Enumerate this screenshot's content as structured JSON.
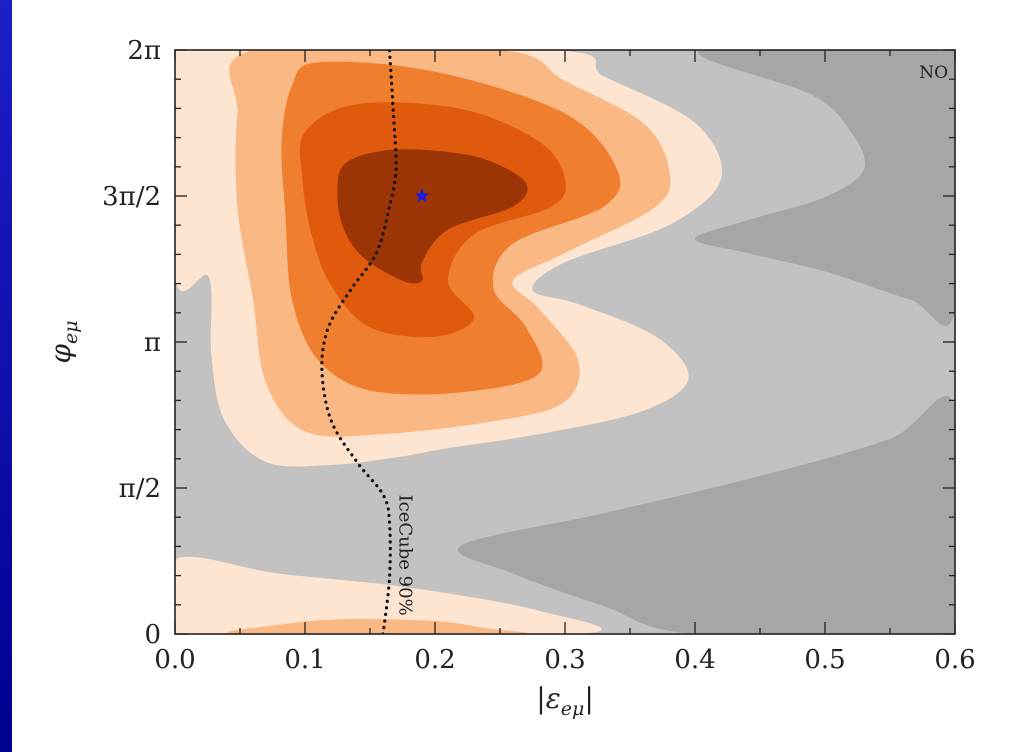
{
  "chart_data": {
    "type": "contour",
    "title": "",
    "xlabel": "|ε_eμ|",
    "ylabel": "φ_eμ",
    "xlim": [
      0.0,
      0.6
    ],
    "ylim": [
      0,
      6.2832
    ],
    "x_ticks": [
      {
        "value": 0.0,
        "label": "0.0"
      },
      {
        "value": 0.1,
        "label": "0.1"
      },
      {
        "value": 0.2,
        "label": "0.2"
      },
      {
        "value": 0.3,
        "label": "0.3"
      },
      {
        "value": 0.4,
        "label": "0.4"
      },
      {
        "value": 0.5,
        "label": "0.5"
      },
      {
        "value": 0.6,
        "label": "0.6"
      }
    ],
    "y_ticks": [
      {
        "value": 0,
        "label": "0"
      },
      {
        "value": 1.5708,
        "label": "π/2"
      },
      {
        "value": 3.1416,
        "label": "π"
      },
      {
        "value": 4.7124,
        "label": "3π/2"
      },
      {
        "value": 6.2832,
        "label": "2π"
      }
    ],
    "colors": {
      "background": "#ffffff",
      "gray_light": "#c2c2c2",
      "gray_dark": "#a6a6a6",
      "orange_1": "#fde5d2",
      "orange_2": "#f9b884",
      "orange_3": "#ef7e2e",
      "orange_4": "#e05a0e",
      "orange_5": "#9b3505",
      "best_fit_marker": "#1a1ae6",
      "slide_background": "#000080"
    },
    "regions": [
      {
        "fill": "gray_light",
        "points": [
          [
            0.0,
            0
          ],
          [
            0.6,
            0
          ],
          [
            0.6,
            6.2832
          ],
          [
            0.0,
            6.2832
          ]
        ]
      },
      {
        "fill": "gray_dark",
        "points": [
          [
            0.405,
            6.2832
          ],
          [
            0.6,
            6.2832
          ],
          [
            0.6,
            3.5
          ],
          [
            0.565,
            3.6
          ],
          [
            0.5,
            3.9
          ],
          [
            0.44,
            4.1
          ],
          [
            0.4,
            4.25
          ],
          [
            0.44,
            4.45
          ],
          [
            0.5,
            4.7
          ],
          [
            0.53,
            5.0
          ],
          [
            0.52,
            5.4
          ],
          [
            0.49,
            5.8
          ]
        ]
      },
      {
        "fill": "gray_dark",
        "points": [
          [
            0.6,
            2.45
          ],
          [
            0.6,
            0
          ],
          [
            0.4,
            0
          ],
          [
            0.33,
            0.3
          ],
          [
            0.26,
            0.65
          ],
          [
            0.22,
            0.95
          ],
          [
            0.33,
            1.3
          ],
          [
            0.45,
            1.7
          ],
          [
            0.55,
            2.1
          ]
        ]
      },
      {
        "fill": "orange_1",
        "points": [
          [
            0.0,
            6.2832
          ],
          [
            0.0,
            3.84
          ],
          [
            0.026,
            3.84
          ],
          [
            0.028,
            3.0
          ],
          [
            0.038,
            2.3
          ],
          [
            0.07,
            1.85
          ],
          [
            0.12,
            1.82
          ],
          [
            0.17,
            1.9
          ],
          [
            0.21,
            2.0
          ],
          [
            0.28,
            2.15
          ],
          [
            0.36,
            2.4
          ],
          [
            0.395,
            2.75
          ],
          [
            0.37,
            3.2
          ],
          [
            0.31,
            3.55
          ],
          [
            0.275,
            3.7
          ],
          [
            0.3,
            4.0
          ],
          [
            0.38,
            4.4
          ],
          [
            0.42,
            4.9
          ],
          [
            0.4,
            5.5
          ],
          [
            0.33,
            6.0
          ],
          [
            0.29,
            6.2832
          ]
        ]
      },
      {
        "fill": "orange_1",
        "points": [
          [
            0.0,
            0.8
          ],
          [
            0.08,
            0.65
          ],
          [
            0.18,
            0.5
          ],
          [
            0.28,
            0.25
          ],
          [
            0.31,
            0
          ],
          [
            0.0,
            0
          ]
        ]
      },
      {
        "fill": "orange_2",
        "points": [
          [
            0.06,
            6.2832
          ],
          [
            0.048,
            5.6
          ],
          [
            0.048,
            4.6
          ],
          [
            0.06,
            3.6
          ],
          [
            0.07,
            2.7
          ],
          [
            0.1,
            2.18
          ],
          [
            0.16,
            2.15
          ],
          [
            0.25,
            2.3
          ],
          [
            0.3,
            2.5
          ],
          [
            0.31,
            2.95
          ],
          [
            0.28,
            3.5
          ],
          [
            0.26,
            3.8
          ],
          [
            0.3,
            4.1
          ],
          [
            0.37,
            4.6
          ],
          [
            0.38,
            5.0
          ],
          [
            0.36,
            5.5
          ],
          [
            0.3,
            5.95
          ],
          [
            0.25,
            6.2832
          ]
        ]
      },
      {
        "fill": "orange_2",
        "points": [
          [
            0.05,
            0
          ],
          [
            0.08,
            0.1
          ],
          [
            0.13,
            0.16
          ],
          [
            0.2,
            0.14
          ],
          [
            0.24,
            0.06
          ],
          [
            0.26,
            0
          ]
        ]
      },
      {
        "fill": "orange_3",
        "points": [
          [
            0.11,
            6.15
          ],
          [
            0.09,
            5.9
          ],
          [
            0.082,
            5.3
          ],
          [
            0.085,
            4.5
          ],
          [
            0.09,
            3.6
          ],
          [
            0.11,
            2.95
          ],
          [
            0.15,
            2.62
          ],
          [
            0.22,
            2.6
          ],
          [
            0.28,
            2.8
          ],
          [
            0.27,
            3.3
          ],
          [
            0.245,
            3.72
          ],
          [
            0.26,
            4.2
          ],
          [
            0.33,
            4.6
          ],
          [
            0.34,
            5.0
          ],
          [
            0.3,
            5.6
          ],
          [
            0.2,
            6.05
          ]
        ]
      },
      {
        "fill": "orange_4",
        "points": [
          [
            0.14,
            5.7
          ],
          [
            0.1,
            5.4
          ],
          [
            0.098,
            4.9
          ],
          [
            0.105,
            4.3
          ],
          [
            0.12,
            3.75
          ],
          [
            0.15,
            3.3
          ],
          [
            0.2,
            3.2
          ],
          [
            0.23,
            3.4
          ],
          [
            0.21,
            3.8
          ],
          [
            0.23,
            4.3
          ],
          [
            0.29,
            4.6
          ],
          [
            0.3,
            4.9
          ],
          [
            0.28,
            5.3
          ],
          [
            0.22,
            5.65
          ]
        ]
      },
      {
        "fill": "orange_5",
        "points": [
          [
            0.16,
            5.2
          ],
          [
            0.13,
            5.05
          ],
          [
            0.125,
            4.7
          ],
          [
            0.13,
            4.35
          ],
          [
            0.145,
            4.05
          ],
          [
            0.175,
            3.8
          ],
          [
            0.19,
            3.8
          ],
          [
            0.19,
            4.0
          ],
          [
            0.21,
            4.35
          ],
          [
            0.26,
            4.6
          ],
          [
            0.27,
            4.85
          ],
          [
            0.24,
            5.1
          ],
          [
            0.2,
            5.2
          ]
        ]
      }
    ],
    "icecube_curve": {
      "label": "IceCube 90%",
      "style": "dotted",
      "points": [
        [
          0.16,
          0
        ],
        [
          0.165,
          0.6
        ],
        [
          0.165,
          1.2
        ],
        [
          0.16,
          1.5
        ],
        [
          0.14,
          1.85
        ],
        [
          0.12,
          2.3
        ],
        [
          0.113,
          2.85
        ],
        [
          0.118,
          3.3
        ],
        [
          0.135,
          3.7
        ],
        [
          0.155,
          4.1
        ],
        [
          0.165,
          4.6
        ],
        [
          0.17,
          5.0
        ],
        [
          0.168,
          5.6
        ],
        [
          0.165,
          6.2832
        ]
      ]
    },
    "best_fit": {
      "x": 0.19,
      "y": 4.7124,
      "marker": "star"
    },
    "annotations": [
      {
        "text": "NO"
      }
    ]
  }
}
